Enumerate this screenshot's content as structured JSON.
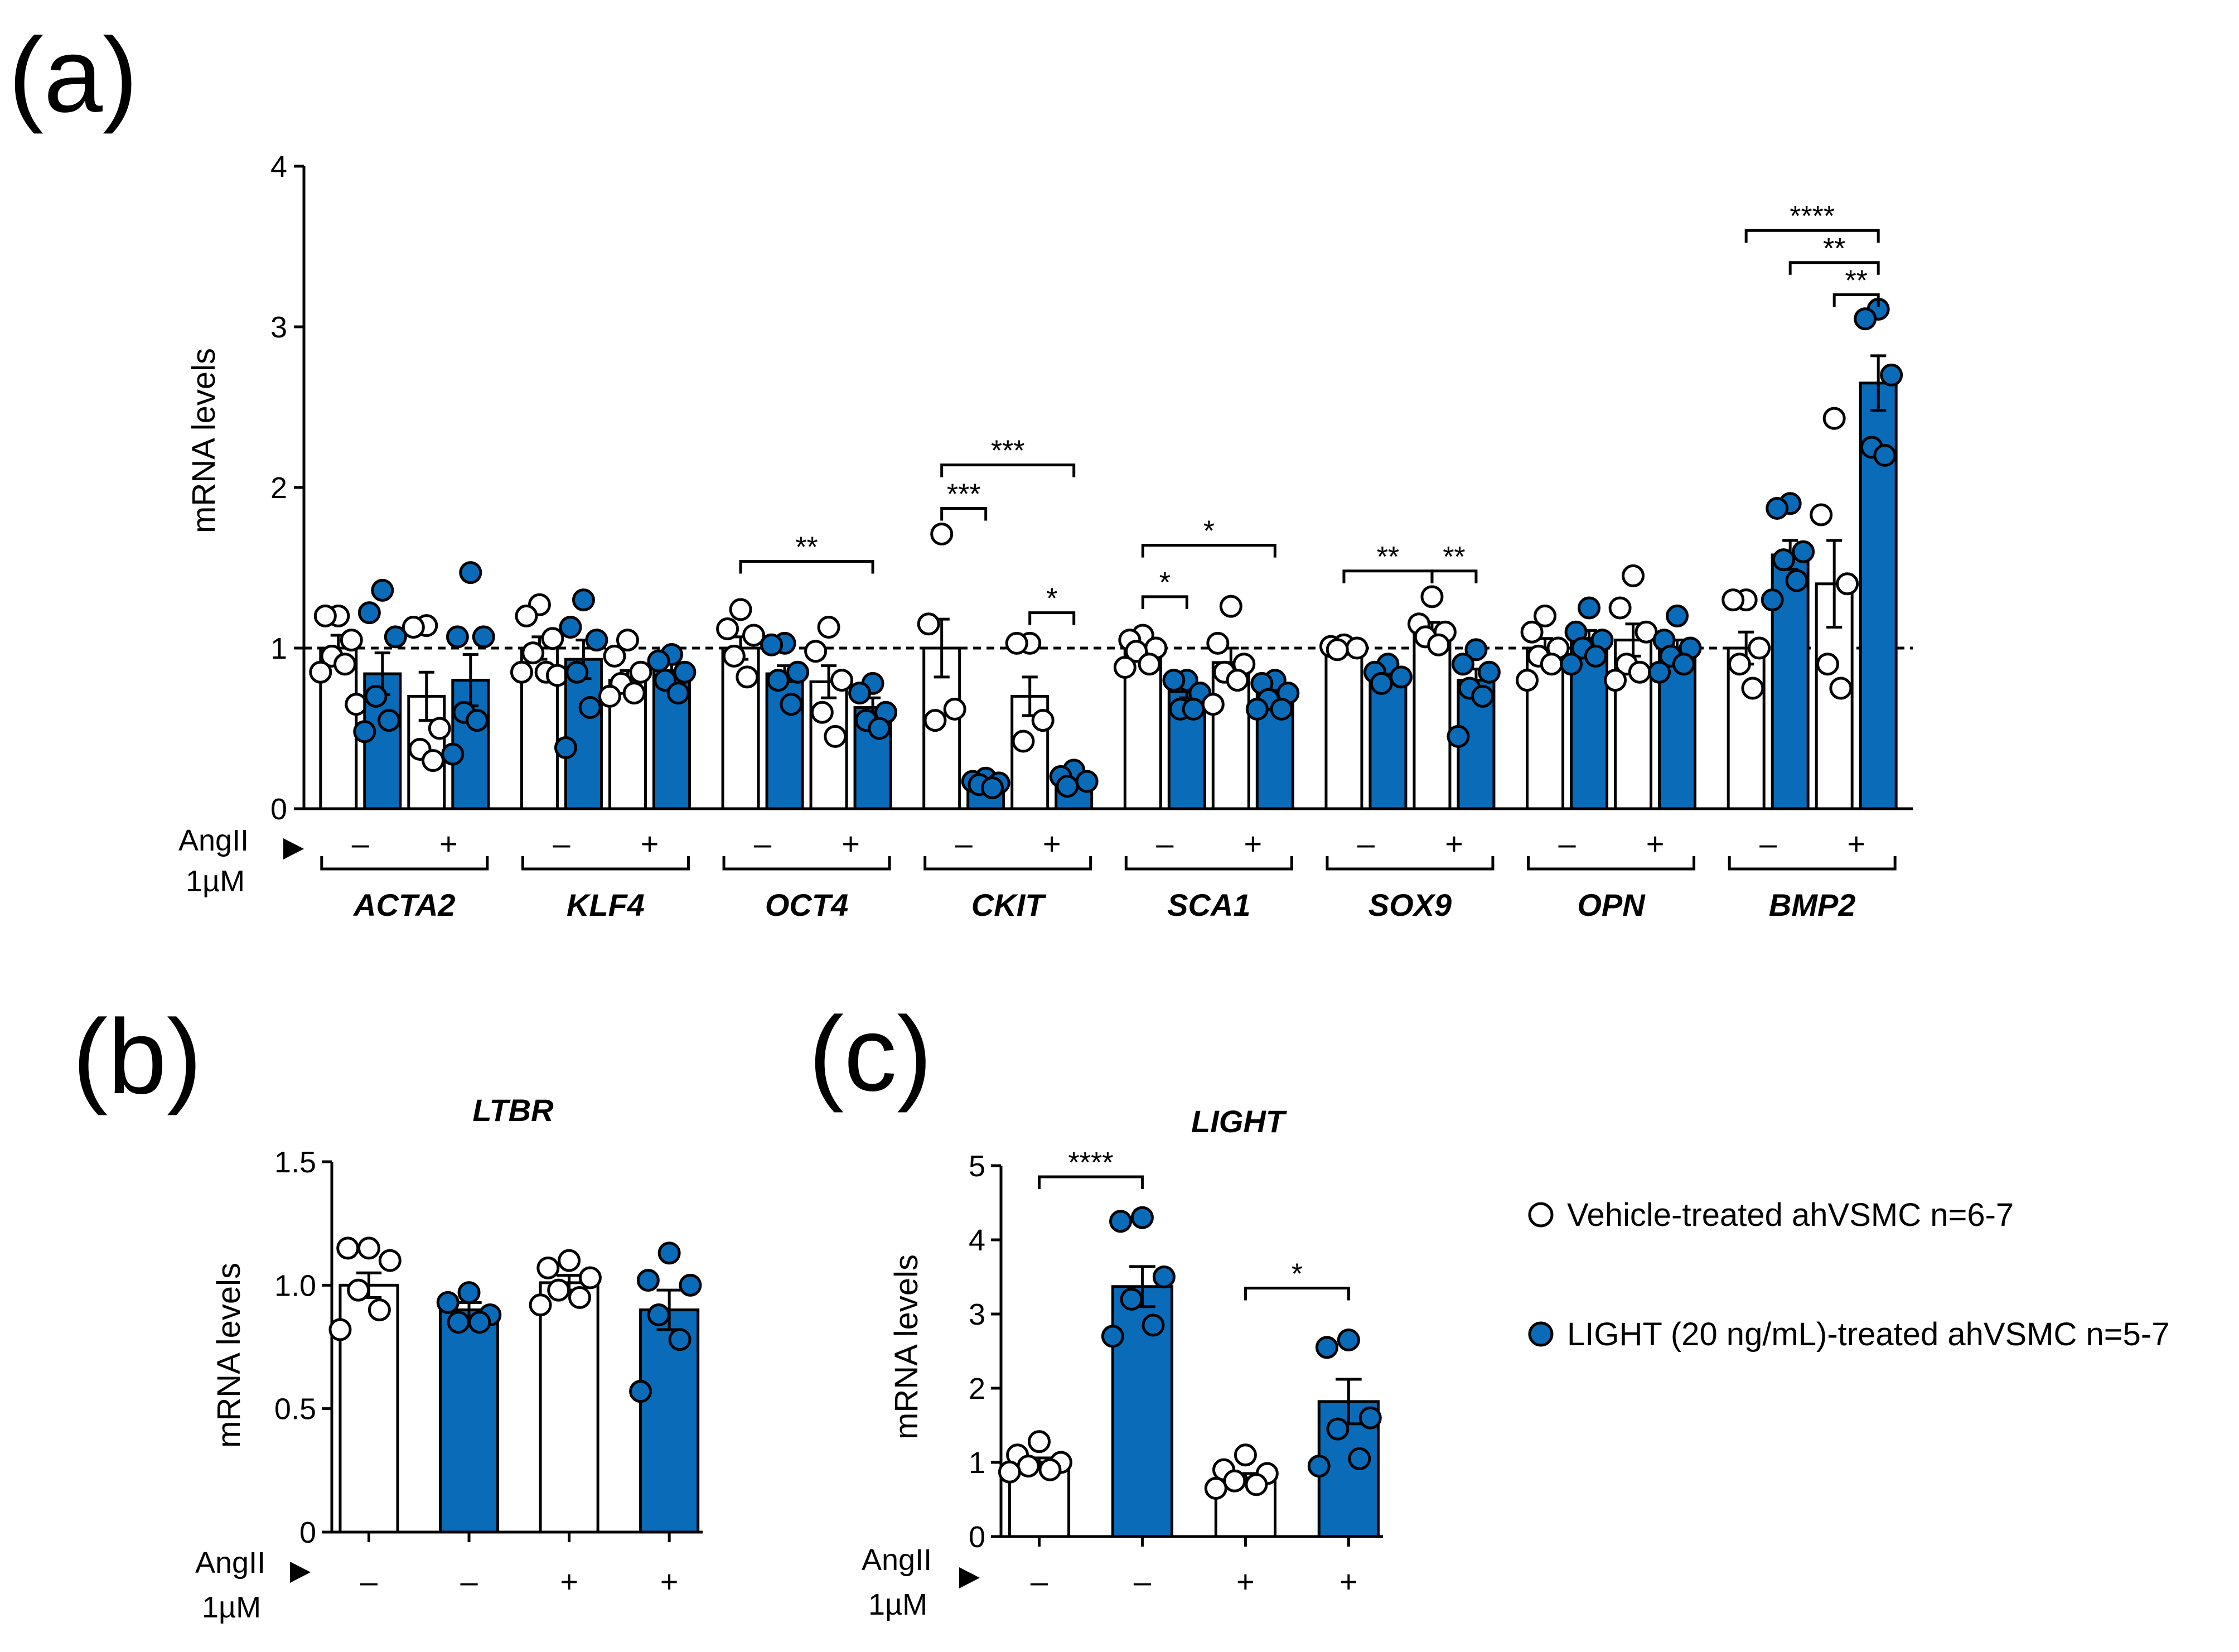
{
  "colors": {
    "vehicle": "#ffffff",
    "light": "#0a6bb8",
    "stroke": "#000000"
  },
  "legend": {
    "vehicle": "Vehicle-treated ahVSMC n=6-7",
    "light": "LIGHT (20 ng/mL)-treated ahVSMC n=5-7"
  },
  "treatment_label": {
    "line1": "AngII",
    "line2": "1µM"
  },
  "chart_data": [
    {
      "panel": "(a)",
      "type": "bar",
      "title": "",
      "ylabel": "mRNA levels",
      "ylim": [
        0,
        4
      ],
      "yticks": [
        0,
        1,
        2,
        3,
        4
      ],
      "reference_line": 1,
      "series": [
        {
          "name": "Vehicle-treated ahVSMC",
          "color_key": "vehicle"
        },
        {
          "name": "LIGHT (20 ng/mL)-treated ahVSMC",
          "color_key": "light"
        }
      ],
      "genes": [
        {
          "name": "ACTA2",
          "bars": [
            {
              "treatment": "–",
              "group": "vehicle",
              "mean": 1.0,
              "sem": 0.08,
              "points": [
                1.2,
                1.2,
                1.05,
                0.95,
                0.9,
                0.85,
                0.65
              ]
            },
            {
              "treatment": "–",
              "group": "light",
              "mean": 0.84,
              "sem": 0.13,
              "points": [
                1.36,
                1.22,
                1.07,
                0.7,
                0.55,
                0.48
              ]
            },
            {
              "treatment": "+",
              "group": "vehicle",
              "mean": 0.7,
              "sem": 0.15,
              "points": [
                1.14,
                1.13,
                0.5,
                0.37,
                0.3
              ]
            },
            {
              "treatment": "+",
              "group": "light",
              "mean": 0.8,
              "sem": 0.16,
              "points": [
                1.47,
                1.07,
                1.07,
                0.6,
                0.55,
                0.34
              ]
            }
          ],
          "sig": []
        },
        {
          "name": "KLF4",
          "bars": [
            {
              "treatment": "–",
              "group": "vehicle",
              "mean": 1.0,
              "sem": 0.07,
              "points": [
                1.27,
                1.2,
                1.06,
                0.97,
                0.85,
                0.85,
                0.83
              ]
            },
            {
              "treatment": "–",
              "group": "light",
              "mean": 0.93,
              "sem": 0.12,
              "points": [
                1.3,
                1.13,
                1.05,
                0.85,
                0.63,
                0.38
              ]
            },
            {
              "treatment": "+",
              "group": "vehicle",
              "mean": 0.8,
              "sem": 0.06,
              "points": [
                1.05,
                0.95,
                0.85,
                0.78,
                0.72,
                0.7
              ]
            },
            {
              "treatment": "+",
              "group": "light",
              "mean": 0.86,
              "sem": 0.04,
              "points": [
                0.96,
                0.92,
                0.85,
                0.8,
                0.72
              ]
            }
          ],
          "sig": []
        },
        {
          "name": "OCT4",
          "bars": [
            {
              "treatment": "–",
              "group": "vehicle",
              "mean": 1.0,
              "sem": 0.07,
              "points": [
                1.24,
                1.12,
                1.08,
                0.95,
                0.82
              ]
            },
            {
              "treatment": "–",
              "group": "light",
              "mean": 0.84,
              "sem": 0.05,
              "points": [
                1.03,
                1.02,
                0.85,
                0.8,
                0.65
              ]
            },
            {
              "treatment": "+",
              "group": "vehicle",
              "mean": 0.79,
              "sem": 0.1,
              "points": [
                1.13,
                0.98,
                0.8,
                0.6,
                0.45
              ]
            },
            {
              "treatment": "+",
              "group": "light",
              "mean": 0.63,
              "sem": 0.06,
              "points": [
                0.78,
                0.72,
                0.6,
                0.55,
                0.5
              ]
            }
          ],
          "sig": [
            {
              "from": 0,
              "to": 3,
              "y": 1.54,
              "label": "**"
            }
          ]
        },
        {
          "name": "CKIT",
          "bars": [
            {
              "treatment": "–",
              "group": "vehicle",
              "mean": 1.0,
              "sem": 0.18,
              "points": [
                1.71,
                1.15,
                0.62,
                0.55
              ]
            },
            {
              "treatment": "–",
              "group": "light",
              "mean": 0.16,
              "sem": 0.02,
              "points": [
                0.19,
                0.17,
                0.16,
                0.15,
                0.13
              ]
            },
            {
              "treatment": "+",
              "group": "vehicle",
              "mean": 0.7,
              "sem": 0.12,
              "points": [
                1.03,
                1.03,
                0.55,
                0.42
              ]
            },
            {
              "treatment": "+",
              "group": "light",
              "mean": 0.17,
              "sem": 0.02,
              "points": [
                0.24,
                0.2,
                0.17,
                0.14
              ]
            }
          ],
          "sig": [
            {
              "from": 0,
              "to": 3,
              "y": 2.14,
              "label": "***"
            },
            {
              "from": 0,
              "to": 1,
              "y": 1.87,
              "label": "***"
            },
            {
              "from": 2,
              "to": 3,
              "y": 1.22,
              "label": "*"
            }
          ]
        },
        {
          "name": "SCA1",
          "bars": [
            {
              "treatment": "–",
              "group": "vehicle",
              "mean": 1.0,
              "sem": 0.04,
              "points": [
                1.08,
                1.05,
                1.0,
                0.98,
                0.9,
                0.88
              ]
            },
            {
              "treatment": "–",
              "group": "light",
              "mean": 0.73,
              "sem": 0.04,
              "points": [
                0.8,
                0.8,
                0.72,
                0.62,
                0.62
              ]
            },
            {
              "treatment": "+",
              "group": "vehicle",
              "mean": 0.91,
              "sem": 0.09,
              "points": [
                1.26,
                1.03,
                0.9,
                0.85,
                0.8,
                0.65
              ]
            },
            {
              "treatment": "+",
              "group": "light",
              "mean": 0.73,
              "sem": 0.04,
              "points": [
                0.8,
                0.78,
                0.72,
                0.68,
                0.62,
                0.62
              ]
            }
          ],
          "sig": [
            {
              "from": 0,
              "to": 3,
              "y": 1.64,
              "label": "*"
            },
            {
              "from": 0,
              "to": 1,
              "y": 1.32,
              "label": "*"
            }
          ]
        },
        {
          "name": "SOX9",
          "bars": [
            {
              "treatment": "–",
              "group": "vehicle",
              "mean": 1.0,
              "sem": 0.01,
              "points": [
                1.02,
                1.01,
                1.0,
                0.99
              ]
            },
            {
              "treatment": "–",
              "group": "light",
              "mean": 0.84,
              "sem": 0.03,
              "points": [
                0.9,
                0.85,
                0.82,
                0.78
              ]
            },
            {
              "treatment": "+",
              "group": "vehicle",
              "mean": 1.11,
              "sem": 0.05,
              "points": [
                1.32,
                1.15,
                1.1,
                1.07,
                1.02
              ]
            },
            {
              "treatment": "+",
              "group": "light",
              "mean": 0.8,
              "sem": 0.07,
              "points": [
                0.99,
                0.9,
                0.85,
                0.75,
                0.7,
                0.45
              ]
            }
          ],
          "sig": [
            {
              "from": 0,
              "to": 2,
              "y": 1.48,
              "label": "**"
            },
            {
              "from": 2,
              "to": 3,
              "y": 1.48,
              "label": "**"
            }
          ]
        },
        {
          "name": "OPN",
          "bars": [
            {
              "treatment": "–",
              "group": "vehicle",
              "mean": 1.0,
              "sem": 0.06,
              "points": [
                1.2,
                1.1,
                1.0,
                0.95,
                0.9,
                0.8
              ]
            },
            {
              "treatment": "–",
              "group": "light",
              "mean": 1.06,
              "sem": 0.05,
              "points": [
                1.25,
                1.1,
                1.05,
                1.0,
                0.95,
                0.9
              ]
            },
            {
              "treatment": "+",
              "group": "vehicle",
              "mean": 1.05,
              "sem": 0.1,
              "points": [
                1.45,
                1.25,
                1.1,
                0.9,
                0.85,
                0.8
              ]
            },
            {
              "treatment": "+",
              "group": "light",
              "mean": 1.0,
              "sem": 0.05,
              "points": [
                1.2,
                1.05,
                1.0,
                0.95,
                0.9,
                0.85
              ]
            }
          ],
          "sig": []
        },
        {
          "name": "BMP2",
          "bars": [
            {
              "treatment": "–",
              "group": "vehicle",
              "mean": 1.0,
              "sem": 0.1,
              "points": [
                1.3,
                1.3,
                1.0,
                0.9,
                0.75
              ]
            },
            {
              "treatment": "–",
              "group": "light",
              "mean": 1.58,
              "sem": 0.09,
              "points": [
                1.9,
                1.87,
                1.6,
                1.55,
                1.42,
                1.3
              ]
            },
            {
              "treatment": "+",
              "group": "vehicle",
              "mean": 1.4,
              "sem": 0.27,
              "points": [
                2.43,
                1.83,
                1.4,
                0.9,
                0.75
              ]
            },
            {
              "treatment": "+",
              "group": "light",
              "mean": 2.65,
              "sem": 0.17,
              "points": [
                3.11,
                3.05,
                2.7,
                2.25,
                2.2
              ]
            }
          ],
          "sig": [
            {
              "from": 0,
              "to": 3,
              "y": 3.6,
              "label": "****"
            },
            {
              "from": 1,
              "to": 3,
              "y": 3.4,
              "label": "**"
            },
            {
              "from": 2,
              "to": 3,
              "y": 3.2,
              "label": "**"
            }
          ]
        }
      ]
    },
    {
      "panel": "(b)",
      "type": "bar",
      "title": "LTBR",
      "ylabel": "mRNA levels",
      "ylim": [
        0,
        1.5
      ],
      "yticks": [
        "0",
        "0.5",
        "1.0",
        "1.5"
      ],
      "ytick_values": [
        0,
        0.5,
        1.0,
        1.5
      ],
      "bars": [
        {
          "treatment": "–",
          "group": "vehicle",
          "mean": 1.0,
          "sem": 0.05,
          "points": [
            1.15,
            1.15,
            1.1,
            0.98,
            0.9,
            0.82
          ]
        },
        {
          "treatment": "–",
          "group": "light",
          "mean": 0.9,
          "sem": 0.03,
          "points": [
            0.97,
            0.93,
            0.88,
            0.85,
            0.85
          ]
        },
        {
          "treatment": "+",
          "group": "vehicle",
          "mean": 1.01,
          "sem": 0.03,
          "points": [
            1.1,
            1.07,
            1.03,
            0.98,
            0.95,
            0.92
          ]
        },
        {
          "treatment": "+",
          "group": "light",
          "mean": 0.9,
          "sem": 0.08,
          "points": [
            1.13,
            1.02,
            1.0,
            0.88,
            0.78,
            0.57
          ]
        }
      ],
      "sig": []
    },
    {
      "panel": "(c)",
      "type": "bar",
      "title": "LIGHT",
      "ylabel": "mRNA levels",
      "ylim": [
        0,
        5
      ],
      "yticks": [
        "0",
        "1",
        "2",
        "3",
        "4",
        "5"
      ],
      "ytick_values": [
        0,
        1,
        2,
        3,
        4,
        5
      ],
      "bars": [
        {
          "treatment": "–",
          "group": "vehicle",
          "mean": 1.0,
          "sem": 0.06,
          "points": [
            1.28,
            1.1,
            1.0,
            0.95,
            0.9,
            0.87
          ]
        },
        {
          "treatment": "–",
          "group": "light",
          "mean": 3.37,
          "sem": 0.27,
          "points": [
            4.3,
            4.25,
            3.5,
            3.2,
            2.85,
            2.7
          ]
        },
        {
          "treatment": "+",
          "group": "vehicle",
          "mean": 0.79,
          "sem": 0.06,
          "points": [
            1.1,
            0.9,
            0.85,
            0.75,
            0.7,
            0.65
          ]
        },
        {
          "treatment": "+",
          "group": "light",
          "mean": 1.82,
          "sem": 0.3,
          "points": [
            2.65,
            2.55,
            1.6,
            1.45,
            1.05,
            0.95
          ]
        }
      ],
      "sig": [
        {
          "from": 0,
          "to": 1,
          "y": 4.85,
          "label": "****"
        },
        {
          "from": 2,
          "to": 3,
          "y": 3.35,
          "label": "*"
        }
      ]
    }
  ]
}
